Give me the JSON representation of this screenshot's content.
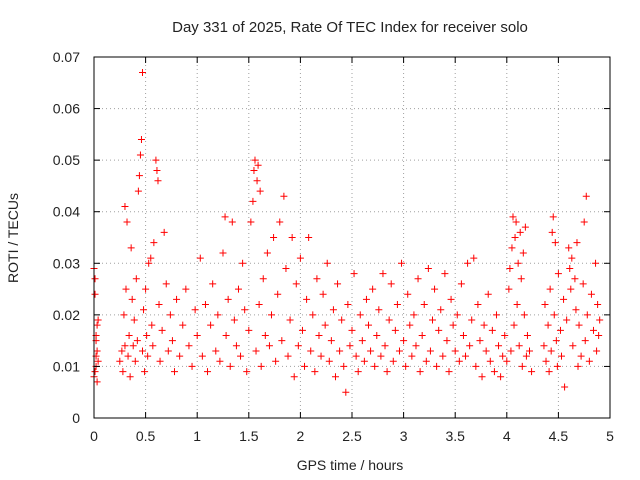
{
  "chart_data": {
    "type": "scatter",
    "title": "Day 331 of 2025, Rate Of TEC Index for receiver solo",
    "xlabel": "GPS time / hours",
    "ylabel": "ROTI / TECUs",
    "xlim": [
      0,
      5
    ],
    "ylim": [
      0,
      0.07
    ],
    "xticks": [
      "0",
      "0.5",
      "1",
      "1.5",
      "2",
      "2.5",
      "3",
      "3.5",
      "4",
      "4.5",
      "5"
    ],
    "yticks": [
      "0",
      "0.01",
      "0.02",
      "0.03",
      "0.04",
      "0.05",
      "0.06",
      "0.07"
    ],
    "grid": true,
    "marker": "+",
    "color": "#ff0000",
    "series": [
      {
        "name": "ROTI",
        "points": [
          [
            0.0,
            0.029
          ],
          [
            0.01,
            0.027
          ],
          [
            0.01,
            0.009
          ],
          [
            0.02,
            0.012
          ],
          [
            0.02,
            0.015
          ],
          [
            0.02,
            0.01
          ],
          [
            0.03,
            0.018
          ],
          [
            0.03,
            0.007
          ],
          [
            0.03,
            0.013
          ],
          [
            0.04,
            0.019
          ],
          [
            0.04,
            0.011
          ],
          [
            0.0,
            0.008
          ],
          [
            0.01,
            0.024
          ],
          [
            0.02,
            0.016
          ],
          [
            0.25,
            0.011
          ],
          [
            0.27,
            0.013
          ],
          [
            0.28,
            0.009
          ],
          [
            0.29,
            0.02
          ],
          [
            0.3,
            0.014
          ],
          [
            0.3,
            0.041
          ],
          [
            0.31,
            0.025
          ],
          [
            0.32,
            0.038
          ],
          [
            0.33,
            0.012
          ],
          [
            0.34,
            0.016
          ],
          [
            0.35,
            0.008
          ],
          [
            0.36,
            0.033
          ],
          [
            0.37,
            0.023
          ],
          [
            0.38,
            0.014
          ],
          [
            0.39,
            0.019
          ],
          [
            0.4,
            0.011
          ],
          [
            0.41,
            0.027
          ],
          [
            0.42,
            0.015
          ],
          [
            0.43,
            0.044
          ],
          [
            0.44,
            0.047
          ],
          [
            0.45,
            0.051
          ],
          [
            0.46,
            0.054
          ],
          [
            0.47,
            0.067
          ],
          [
            0.47,
            0.013
          ],
          [
            0.48,
            0.021
          ],
          [
            0.49,
            0.009
          ],
          [
            0.5,
            0.025
          ],
          [
            0.51,
            0.016
          ],
          [
            0.52,
            0.012
          ],
          [
            0.53,
            0.03
          ],
          [
            0.55,
            0.031
          ],
          [
            0.56,
            0.018
          ],
          [
            0.57,
            0.014
          ],
          [
            0.58,
            0.034
          ],
          [
            0.6,
            0.05
          ],
          [
            0.61,
            0.048
          ],
          [
            0.62,
            0.046
          ],
          [
            0.63,
            0.022
          ],
          [
            0.64,
            0.011
          ],
          [
            0.66,
            0.017
          ],
          [
            0.68,
            0.036
          ],
          [
            0.7,
            0.026
          ],
          [
            0.72,
            0.013
          ],
          [
            0.74,
            0.02
          ],
          [
            0.76,
            0.015
          ],
          [
            0.78,
            0.009
          ],
          [
            0.8,
            0.023
          ],
          [
            0.83,
            0.012
          ],
          [
            0.86,
            0.018
          ],
          [
            0.89,
            0.025
          ],
          [
            0.92,
            0.014
          ],
          [
            0.95,
            0.01
          ],
          [
            0.98,
            0.021
          ],
          [
            1.0,
            0.016
          ],
          [
            1.03,
            0.031
          ],
          [
            1.05,
            0.012
          ],
          [
            1.08,
            0.022
          ],
          [
            1.1,
            0.009
          ],
          [
            1.13,
            0.018
          ],
          [
            1.15,
            0.026
          ],
          [
            1.18,
            0.013
          ],
          [
            1.2,
            0.02
          ],
          [
            1.22,
            0.011
          ],
          [
            1.25,
            0.032
          ],
          [
            1.27,
            0.039
          ],
          [
            1.28,
            0.016
          ],
          [
            1.3,
            0.023
          ],
          [
            1.32,
            0.01
          ],
          [
            1.34,
            0.038
          ],
          [
            1.36,
            0.019
          ],
          [
            1.38,
            0.014
          ],
          [
            1.4,
            0.025
          ],
          [
            1.42,
            0.012
          ],
          [
            1.44,
            0.03
          ],
          [
            1.46,
            0.021
          ],
          [
            1.48,
            0.009
          ],
          [
            1.5,
            0.017
          ],
          [
            1.52,
            0.038
          ],
          [
            1.54,
            0.042
          ],
          [
            1.55,
            0.048
          ],
          [
            1.56,
            0.05
          ],
          [
            1.57,
            0.013
          ],
          [
            1.58,
            0.046
          ],
          [
            1.59,
            0.049
          ],
          [
            1.6,
            0.022
          ],
          [
            1.61,
            0.044
          ],
          [
            1.62,
            0.01
          ],
          [
            1.64,
            0.027
          ],
          [
            1.66,
            0.016
          ],
          [
            1.68,
            0.032
          ],
          [
            1.7,
            0.014
          ],
          [
            1.72,
            0.02
          ],
          [
            1.74,
            0.035
          ],
          [
            1.76,
            0.011
          ],
          [
            1.78,
            0.024
          ],
          [
            1.8,
            0.038
          ],
          [
            1.82,
            0.015
          ],
          [
            1.84,
            0.043
          ],
          [
            1.86,
            0.029
          ],
          [
            1.88,
            0.012
          ],
          [
            1.9,
            0.019
          ],
          [
            1.92,
            0.035
          ],
          [
            1.94,
            0.008
          ],
          [
            1.96,
            0.026
          ],
          [
            1.98,
            0.014
          ],
          [
            2.0,
            0.031
          ],
          [
            2.02,
            0.017
          ],
          [
            2.04,
            0.01
          ],
          [
            2.06,
            0.023
          ],
          [
            2.08,
            0.035
          ],
          [
            2.1,
            0.013
          ],
          [
            2.12,
            0.02
          ],
          [
            2.14,
            0.009
          ],
          [
            2.16,
            0.027
          ],
          [
            2.18,
            0.016
          ],
          [
            2.2,
            0.012
          ],
          [
            2.22,
            0.024
          ],
          [
            2.24,
            0.018
          ],
          [
            2.26,
            0.03
          ],
          [
            2.28,
            0.011
          ],
          [
            2.3,
            0.015
          ],
          [
            2.32,
            0.021
          ],
          [
            2.34,
            0.008
          ],
          [
            2.36,
            0.026
          ],
          [
            2.38,
            0.013
          ],
          [
            2.4,
            0.019
          ],
          [
            2.42,
            0.01
          ],
          [
            2.44,
            0.005
          ],
          [
            2.46,
            0.022
          ],
          [
            2.48,
            0.014
          ],
          [
            2.5,
            0.017
          ],
          [
            2.52,
            0.028
          ],
          [
            2.54,
            0.012
          ],
          [
            2.56,
            0.009
          ],
          [
            2.58,
            0.02
          ],
          [
            2.6,
            0.015
          ],
          [
            2.62,
            0.011
          ],
          [
            2.64,
            0.023
          ],
          [
            2.66,
            0.018
          ],
          [
            2.68,
            0.013
          ],
          [
            2.7,
            0.025
          ],
          [
            2.72,
            0.01
          ],
          [
            2.74,
            0.016
          ],
          [
            2.76,
            0.021
          ],
          [
            2.78,
            0.012
          ],
          [
            2.8,
            0.028
          ],
          [
            2.82,
            0.014
          ],
          [
            2.84,
            0.009
          ],
          [
            2.86,
            0.019
          ],
          [
            2.88,
            0.026
          ],
          [
            2.9,
            0.011
          ],
          [
            2.92,
            0.017
          ],
          [
            2.94,
            0.022
          ],
          [
            2.96,
            0.013
          ],
          [
            2.98,
            0.03
          ],
          [
            3.0,
            0.015
          ],
          [
            3.02,
            0.01
          ],
          [
            3.04,
            0.024
          ],
          [
            3.06,
            0.018
          ],
          [
            3.08,
            0.012
          ],
          [
            3.1,
            0.02
          ],
          [
            3.12,
            0.014
          ],
          [
            3.14,
            0.027
          ],
          [
            3.16,
            0.009
          ],
          [
            3.18,
            0.016
          ],
          [
            3.2,
            0.022
          ],
          [
            3.22,
            0.011
          ],
          [
            3.24,
            0.029
          ],
          [
            3.26,
            0.013
          ],
          [
            3.28,
            0.019
          ],
          [
            3.3,
            0.025
          ],
          [
            3.32,
            0.01
          ],
          [
            3.34,
            0.017
          ],
          [
            3.36,
            0.021
          ],
          [
            3.38,
            0.012
          ],
          [
            3.4,
            0.028
          ],
          [
            3.42,
            0.015
          ],
          [
            3.44,
            0.009
          ],
          [
            3.46,
            0.023
          ],
          [
            3.48,
            0.018
          ],
          [
            3.5,
            0.013
          ],
          [
            3.52,
            0.02
          ],
          [
            3.54,
            0.011
          ],
          [
            3.56,
            0.026
          ],
          [
            3.58,
            0.016
          ],
          [
            3.6,
            0.012
          ],
          [
            3.62,
            0.03
          ],
          [
            3.64,
            0.014
          ],
          [
            3.66,
            0.019
          ],
          [
            3.68,
            0.031
          ],
          [
            3.7,
            0.01
          ],
          [
            3.72,
            0.022
          ],
          [
            3.74,
            0.015
          ],
          [
            3.76,
            0.008
          ],
          [
            3.78,
            0.018
          ],
          [
            3.8,
            0.013
          ],
          [
            3.82,
            0.024
          ],
          [
            3.84,
            0.011
          ],
          [
            3.86,
            0.017
          ],
          [
            3.88,
            0.009
          ],
          [
            3.9,
            0.02
          ],
          [
            3.92,
            0.014
          ],
          [
            3.94,
            0.008
          ],
          [
            3.96,
            0.012
          ],
          [
            3.98,
            0.016
          ],
          [
            4.0,
            0.011
          ],
          [
            4.02,
            0.025
          ],
          [
            4.03,
            0.029
          ],
          [
            4.04,
            0.013
          ],
          [
            4.05,
            0.033
          ],
          [
            4.06,
            0.039
          ],
          [
            4.07,
            0.018
          ],
          [
            4.08,
            0.035
          ],
          [
            4.09,
            0.038
          ],
          [
            4.1,
            0.022
          ],
          [
            4.11,
            0.03
          ],
          [
            4.12,
            0.014
          ],
          [
            4.13,
            0.036
          ],
          [
            4.14,
            0.027
          ],
          [
            4.15,
            0.01
          ],
          [
            4.16,
            0.032
          ],
          [
            4.17,
            0.02
          ],
          [
            4.18,
            0.037
          ],
          [
            4.19,
            0.012
          ],
          [
            4.2,
            0.016
          ],
          [
            4.22,
            0.013
          ],
          [
            4.24,
            0.009
          ],
          [
            4.36,
            0.014
          ],
          [
            4.37,
            0.022
          ],
          [
            4.38,
            0.011
          ],
          [
            4.4,
            0.018
          ],
          [
            4.41,
            0.009
          ],
          [
            4.42,
            0.025
          ],
          [
            4.43,
            0.013
          ],
          [
            4.44,
            0.036
          ],
          [
            4.45,
            0.039
          ],
          [
            4.46,
            0.02
          ],
          [
            4.47,
            0.034
          ],
          [
            4.48,
            0.015
          ],
          [
            4.49,
            0.01
          ],
          [
            4.5,
            0.028
          ],
          [
            4.52,
            0.017
          ],
          [
            4.53,
            0.012
          ],
          [
            4.55,
            0.023
          ],
          [
            4.56,
            0.006
          ],
          [
            4.58,
            0.019
          ],
          [
            4.6,
            0.033
          ],
          [
            4.61,
            0.029
          ],
          [
            4.62,
            0.025
          ],
          [
            4.63,
            0.031
          ],
          [
            4.64,
            0.014
          ],
          [
            4.66,
            0.027
          ],
          [
            4.67,
            0.021
          ],
          [
            4.68,
            0.034
          ],
          [
            4.69,
            0.01
          ],
          [
            4.7,
            0.018
          ],
          [
            4.72,
            0.012
          ],
          [
            4.74,
            0.026
          ],
          [
            4.75,
            0.038
          ],
          [
            4.76,
            0.015
          ],
          [
            4.77,
            0.043
          ],
          [
            4.78,
            0.02
          ],
          [
            4.8,
            0.011
          ],
          [
            4.82,
            0.024
          ],
          [
            4.84,
            0.017
          ],
          [
            4.86,
            0.03
          ],
          [
            4.87,
            0.013
          ],
          [
            4.88,
            0.022
          ],
          [
            4.89,
            0.016
          ],
          [
            4.9,
            0.019
          ]
        ]
      }
    ]
  }
}
